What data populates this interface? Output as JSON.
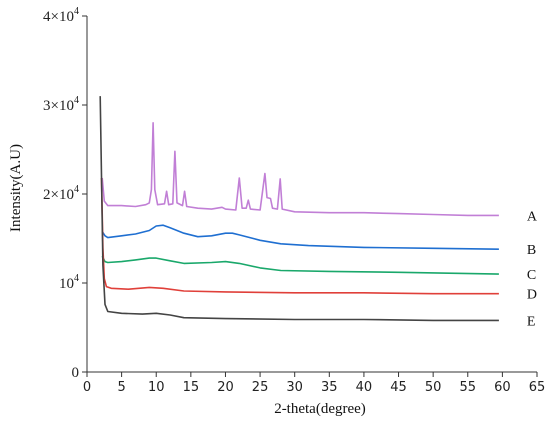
{
  "chart_data": {
    "type": "line",
    "xlabel": "2-theta(degree)",
    "ylabel": "Intensity(A.U)",
    "xlim": [
      0,
      65
    ],
    "ylim": [
      0,
      40000
    ],
    "x_ticks": [
      0,
      5,
      10,
      15,
      20,
      25,
      30,
      35,
      40,
      45,
      50,
      55,
      60,
      65
    ],
    "y_ticks": [
      {
        "value": 0,
        "base": "0",
        "exp": ""
      },
      {
        "value": 10000,
        "base": "10",
        "exp": "4"
      },
      {
        "value": 20000,
        "base": "2×10",
        "exp": "4"
      },
      {
        "value": 30000,
        "base": "3×10",
        "exp": "4"
      },
      {
        "value": 40000,
        "base": "4×10",
        "exp": "4"
      }
    ],
    "grid": false,
    "series": [
      {
        "name": "A",
        "color": "#c17fd6",
        "points": [
          [
            2.2,
            21800
          ],
          [
            2.5,
            19200
          ],
          [
            3,
            18700
          ],
          [
            5,
            18700
          ],
          [
            7,
            18600
          ],
          [
            8.5,
            18800
          ],
          [
            9,
            19000
          ],
          [
            9.3,
            20500
          ],
          [
            9.55,
            28000
          ],
          [
            9.8,
            20500
          ],
          [
            10.2,
            18800
          ],
          [
            11.2,
            18900
          ],
          [
            11.5,
            20300
          ],
          [
            11.8,
            18800
          ],
          [
            12.4,
            18900
          ],
          [
            12.7,
            24800
          ],
          [
            13,
            19000
          ],
          [
            13.8,
            18700
          ],
          [
            14.1,
            20300
          ],
          [
            14.4,
            18600
          ],
          [
            16,
            18400
          ],
          [
            18,
            18300
          ],
          [
            19.5,
            18500
          ],
          [
            20,
            18300
          ],
          [
            21.5,
            18200
          ],
          [
            22,
            21800
          ],
          [
            22.4,
            18400
          ],
          [
            23,
            18400
          ],
          [
            23.3,
            19300
          ],
          [
            23.6,
            18300
          ],
          [
            25,
            18200
          ],
          [
            25.7,
            22300
          ],
          [
            26,
            19600
          ],
          [
            26.5,
            19500
          ],
          [
            26.8,
            18400
          ],
          [
            27.5,
            18300
          ],
          [
            27.9,
            21700
          ],
          [
            28.2,
            18300
          ],
          [
            30,
            18000
          ],
          [
            35,
            17900
          ],
          [
            40,
            17900
          ],
          [
            45,
            17800
          ],
          [
            50,
            17700
          ],
          [
            55,
            17600
          ],
          [
            59.5,
            17600
          ]
        ]
      },
      {
        "name": "B",
        "color": "#1f6fd1",
        "points": [
          [
            2.2,
            15800
          ],
          [
            2.6,
            15300
          ],
          [
            3,
            15100
          ],
          [
            5,
            15300
          ],
          [
            7,
            15500
          ],
          [
            9,
            15900
          ],
          [
            10,
            16400
          ],
          [
            11,
            16500
          ],
          [
            12,
            16200
          ],
          [
            14,
            15600
          ],
          [
            16,
            15200
          ],
          [
            18,
            15300
          ],
          [
            20,
            15600
          ],
          [
            21,
            15600
          ],
          [
            22,
            15400
          ],
          [
            25,
            14800
          ],
          [
            28,
            14400
          ],
          [
            32,
            14200
          ],
          [
            40,
            14000
          ],
          [
            50,
            13900
          ],
          [
            59.5,
            13800
          ]
        ]
      },
      {
        "name": "C",
        "color": "#1aa86b",
        "points": [
          [
            2.2,
            13000
          ],
          [
            2.6,
            12400
          ],
          [
            3,
            12300
          ],
          [
            5,
            12400
          ],
          [
            7,
            12600
          ],
          [
            9,
            12800
          ],
          [
            10,
            12800
          ],
          [
            12,
            12500
          ],
          [
            14,
            12200
          ],
          [
            18,
            12300
          ],
          [
            20,
            12400
          ],
          [
            22,
            12200
          ],
          [
            25,
            11700
          ],
          [
            28,
            11400
          ],
          [
            35,
            11300
          ],
          [
            45,
            11200
          ],
          [
            59.5,
            11000
          ]
        ]
      },
      {
        "name": "D",
        "color": "#e0403a",
        "points": [
          [
            2.1,
            21800
          ],
          [
            2.3,
            14000
          ],
          [
            2.5,
            10500
          ],
          [
            2.8,
            9600
          ],
          [
            3.5,
            9400
          ],
          [
            6,
            9300
          ],
          [
            9,
            9500
          ],
          [
            11,
            9400
          ],
          [
            14,
            9100
          ],
          [
            20,
            9000
          ],
          [
            30,
            8900
          ],
          [
            40,
            8900
          ],
          [
            50,
            8800
          ],
          [
            59.5,
            8800
          ]
        ]
      },
      {
        "name": "E",
        "color": "#444444",
        "points": [
          [
            1.9,
            31000
          ],
          [
            2.1,
            22000
          ],
          [
            2.3,
            12000
          ],
          [
            2.6,
            7600
          ],
          [
            3,
            6800
          ],
          [
            5,
            6600
          ],
          [
            8,
            6500
          ],
          [
            10,
            6600
          ],
          [
            12,
            6400
          ],
          [
            14,
            6100
          ],
          [
            20,
            6000
          ],
          [
            30,
            5900
          ],
          [
            40,
            5900
          ],
          [
            50,
            5800
          ],
          [
            59.5,
            5800
          ]
        ]
      }
    ]
  }
}
